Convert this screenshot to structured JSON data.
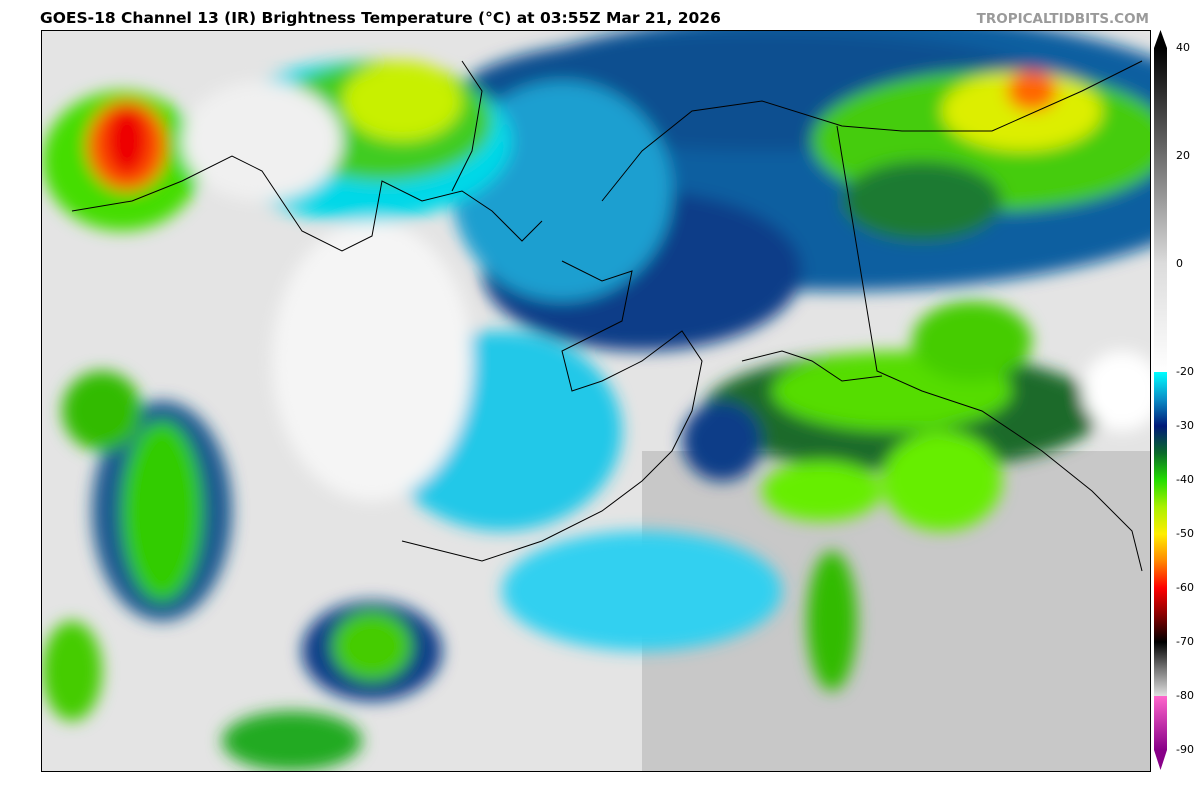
{
  "header": {
    "title": "GOES-18 Channel 13 (IR) Brightness Temperature (°C) at 03:55Z Mar 21, 2026",
    "brand": "TROPICALTIDBITS.COM"
  },
  "map": {
    "product": "GOES-18 Channel 13 IR brightness temperature",
    "region": "Alaska / Bering Sea",
    "coastlines": true
  },
  "colorbar": {
    "min": -90,
    "max": 40,
    "ticks": [
      "40",
      "20",
      "0",
      "-20",
      "-30",
      "-40",
      "-50",
      "-60",
      "-70",
      "-80",
      "-90"
    ],
    "stops": [
      {
        "t": 40,
        "c": "#000000"
      },
      {
        "t": 0,
        "c": "#dcdcdc"
      },
      {
        "t": -20,
        "c": "#ffffff"
      },
      {
        "t": -20,
        "c": "#00ffff"
      },
      {
        "t": -25,
        "c": "#0a8fc8"
      },
      {
        "t": -30,
        "c": "#001a78"
      },
      {
        "t": -35,
        "c": "#0a6a2a"
      },
      {
        "t": -40,
        "c": "#22dd00"
      },
      {
        "t": -45,
        "c": "#aaf000"
      },
      {
        "t": -50,
        "c": "#ffee00"
      },
      {
        "t": -55,
        "c": "#ff8800"
      },
      {
        "t": -60,
        "c": "#ff0000"
      },
      {
        "t": -65,
        "c": "#880000"
      },
      {
        "t": -70,
        "c": "#000000"
      },
      {
        "t": -75,
        "c": "#777777"
      },
      {
        "t": -80,
        "c": "#e0e0e0"
      },
      {
        "t": -80,
        "c": "#ff66cc"
      },
      {
        "t": -90,
        "c": "#880088"
      }
    ]
  }
}
